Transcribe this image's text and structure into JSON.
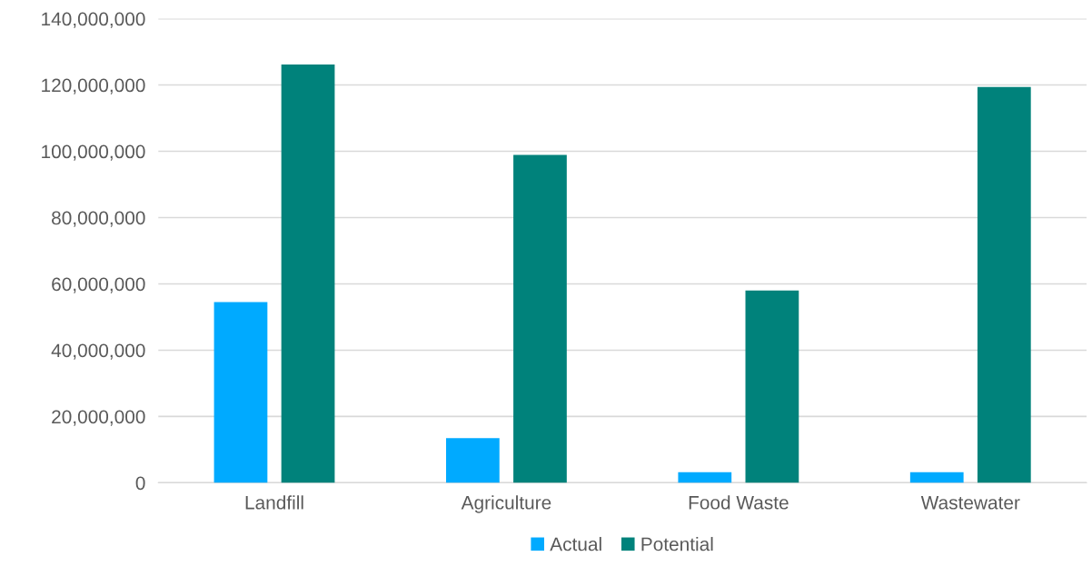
{
  "chart_data": {
    "type": "bar",
    "categories": [
      "Landfill",
      "Agriculture",
      "Food Waste",
      "Wastewater"
    ],
    "series": [
      {
        "name": "Actual",
        "color": "#00aaff",
        "values": [
          54500000,
          13500000,
          3200000,
          3200000
        ]
      },
      {
        "name": "Potential",
        "color": "#00827b",
        "values": [
          126200000,
          98900000,
          58000000,
          119400000
        ]
      }
    ],
    "ylim": [
      0,
      140000000
    ],
    "yticks": [
      {
        "value": 0,
        "label": "0"
      },
      {
        "value": 20000000,
        "label": "20,000,000"
      },
      {
        "value": 40000000,
        "label": "40,000,000"
      },
      {
        "value": 60000000,
        "label": "60,000,000"
      },
      {
        "value": 80000000,
        "label": "80,000,000"
      },
      {
        "value": 100000000,
        "label": "100,000,000"
      },
      {
        "value": 120000000,
        "label": "120,000,000"
      },
      {
        "value": 140000000,
        "label": "140,000,000"
      }
    ],
    "grid": "y",
    "legend": "bottom"
  }
}
